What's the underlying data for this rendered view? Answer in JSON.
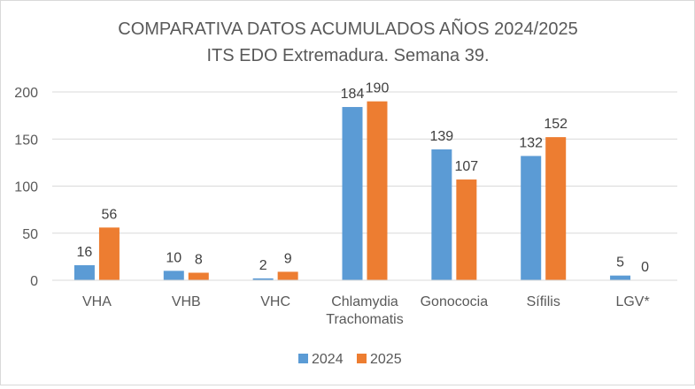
{
  "chart_data": {
    "type": "bar",
    "title": "COMPARATIVA DATOS ACUMULADOS AÑOS 2024/2025",
    "subtitle": "ITS EDO Extremadura. Semana 39.",
    "categories": [
      [
        "VHA"
      ],
      [
        "VHB"
      ],
      [
        "VHC"
      ],
      [
        "Chlamydia",
        "Trachomatis"
      ],
      [
        "Gonococia"
      ],
      [
        "Sífilis"
      ],
      [
        "LGV*"
      ]
    ],
    "series": [
      {
        "name": "2024",
        "color": "#5b9bd5",
        "values": [
          16,
          10,
          2,
          184,
          139,
          132,
          5
        ]
      },
      {
        "name": "2025",
        "color": "#ed7d31",
        "values": [
          56,
          8,
          9,
          190,
          107,
          152,
          0
        ]
      }
    ],
    "ylim": [
      0,
      200
    ],
    "yticks": [
      0,
      50,
      100,
      150,
      200
    ],
    "grid": true,
    "legend_position": "bottom"
  }
}
